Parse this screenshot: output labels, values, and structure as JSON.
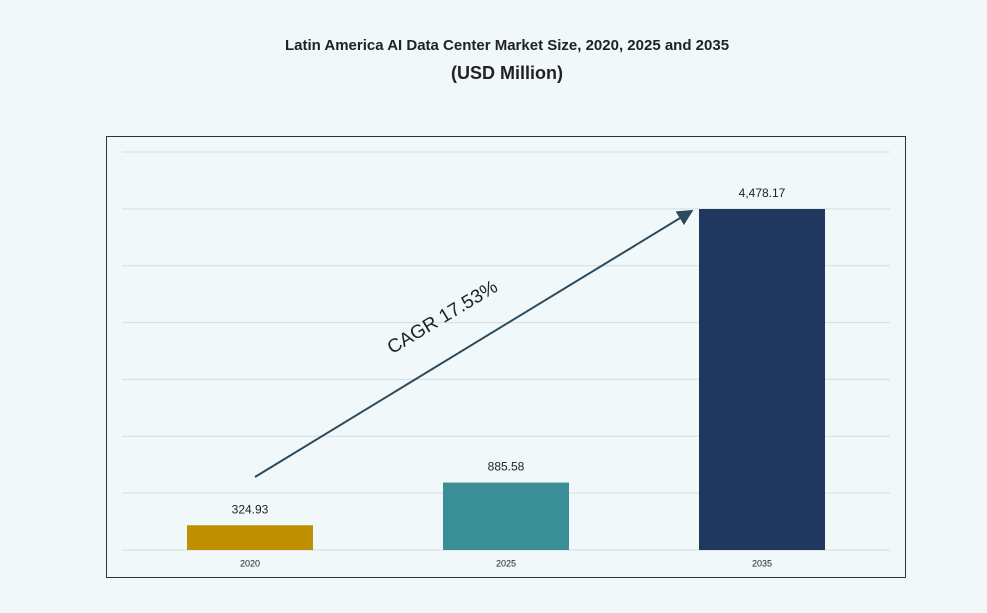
{
  "chart_data": {
    "type": "bar",
    "title": "Latin America AI Data Center Market Size, 2020, 2025 and 2035",
    "subtitle": "(USD Million)",
    "categories": [
      "2020",
      "2025",
      "2035"
    ],
    "values": [
      324.93,
      885.58,
      4478.17
    ],
    "value_labels": [
      "324.93",
      "885.58",
      "4,478.17"
    ],
    "colors": [
      "#c09000",
      "#3a8f96",
      "#20375f"
    ],
    "annotation": "CAGR 17.53%"
  }
}
